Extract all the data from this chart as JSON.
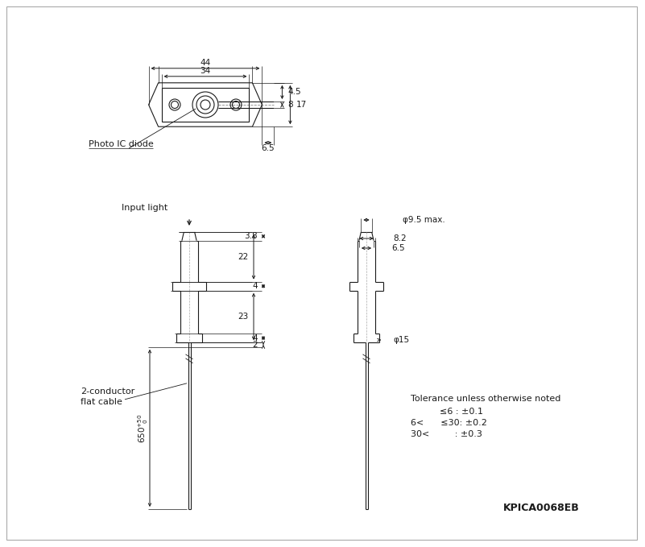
{
  "bg_color": "#ffffff",
  "line_color": "#1a1a1a",
  "fig_width": 8.01,
  "fig_height": 6.79,
  "dpi": 100,
  "watermark": "KPICA0068EB",
  "tolerance_title": "Tolerance unless otherwise noted",
  "tol_line1": "      ≤6 : ±0.1",
  "tol_line2": "6<      ≤30: ±0.2",
  "tol_line3": "30<         : ±0.3",
  "photo_ic_label": "Photo IC diode",
  "input_light_label": "Input light",
  "cable_label1": "2-conductor",
  "cable_label2": "flat cable"
}
